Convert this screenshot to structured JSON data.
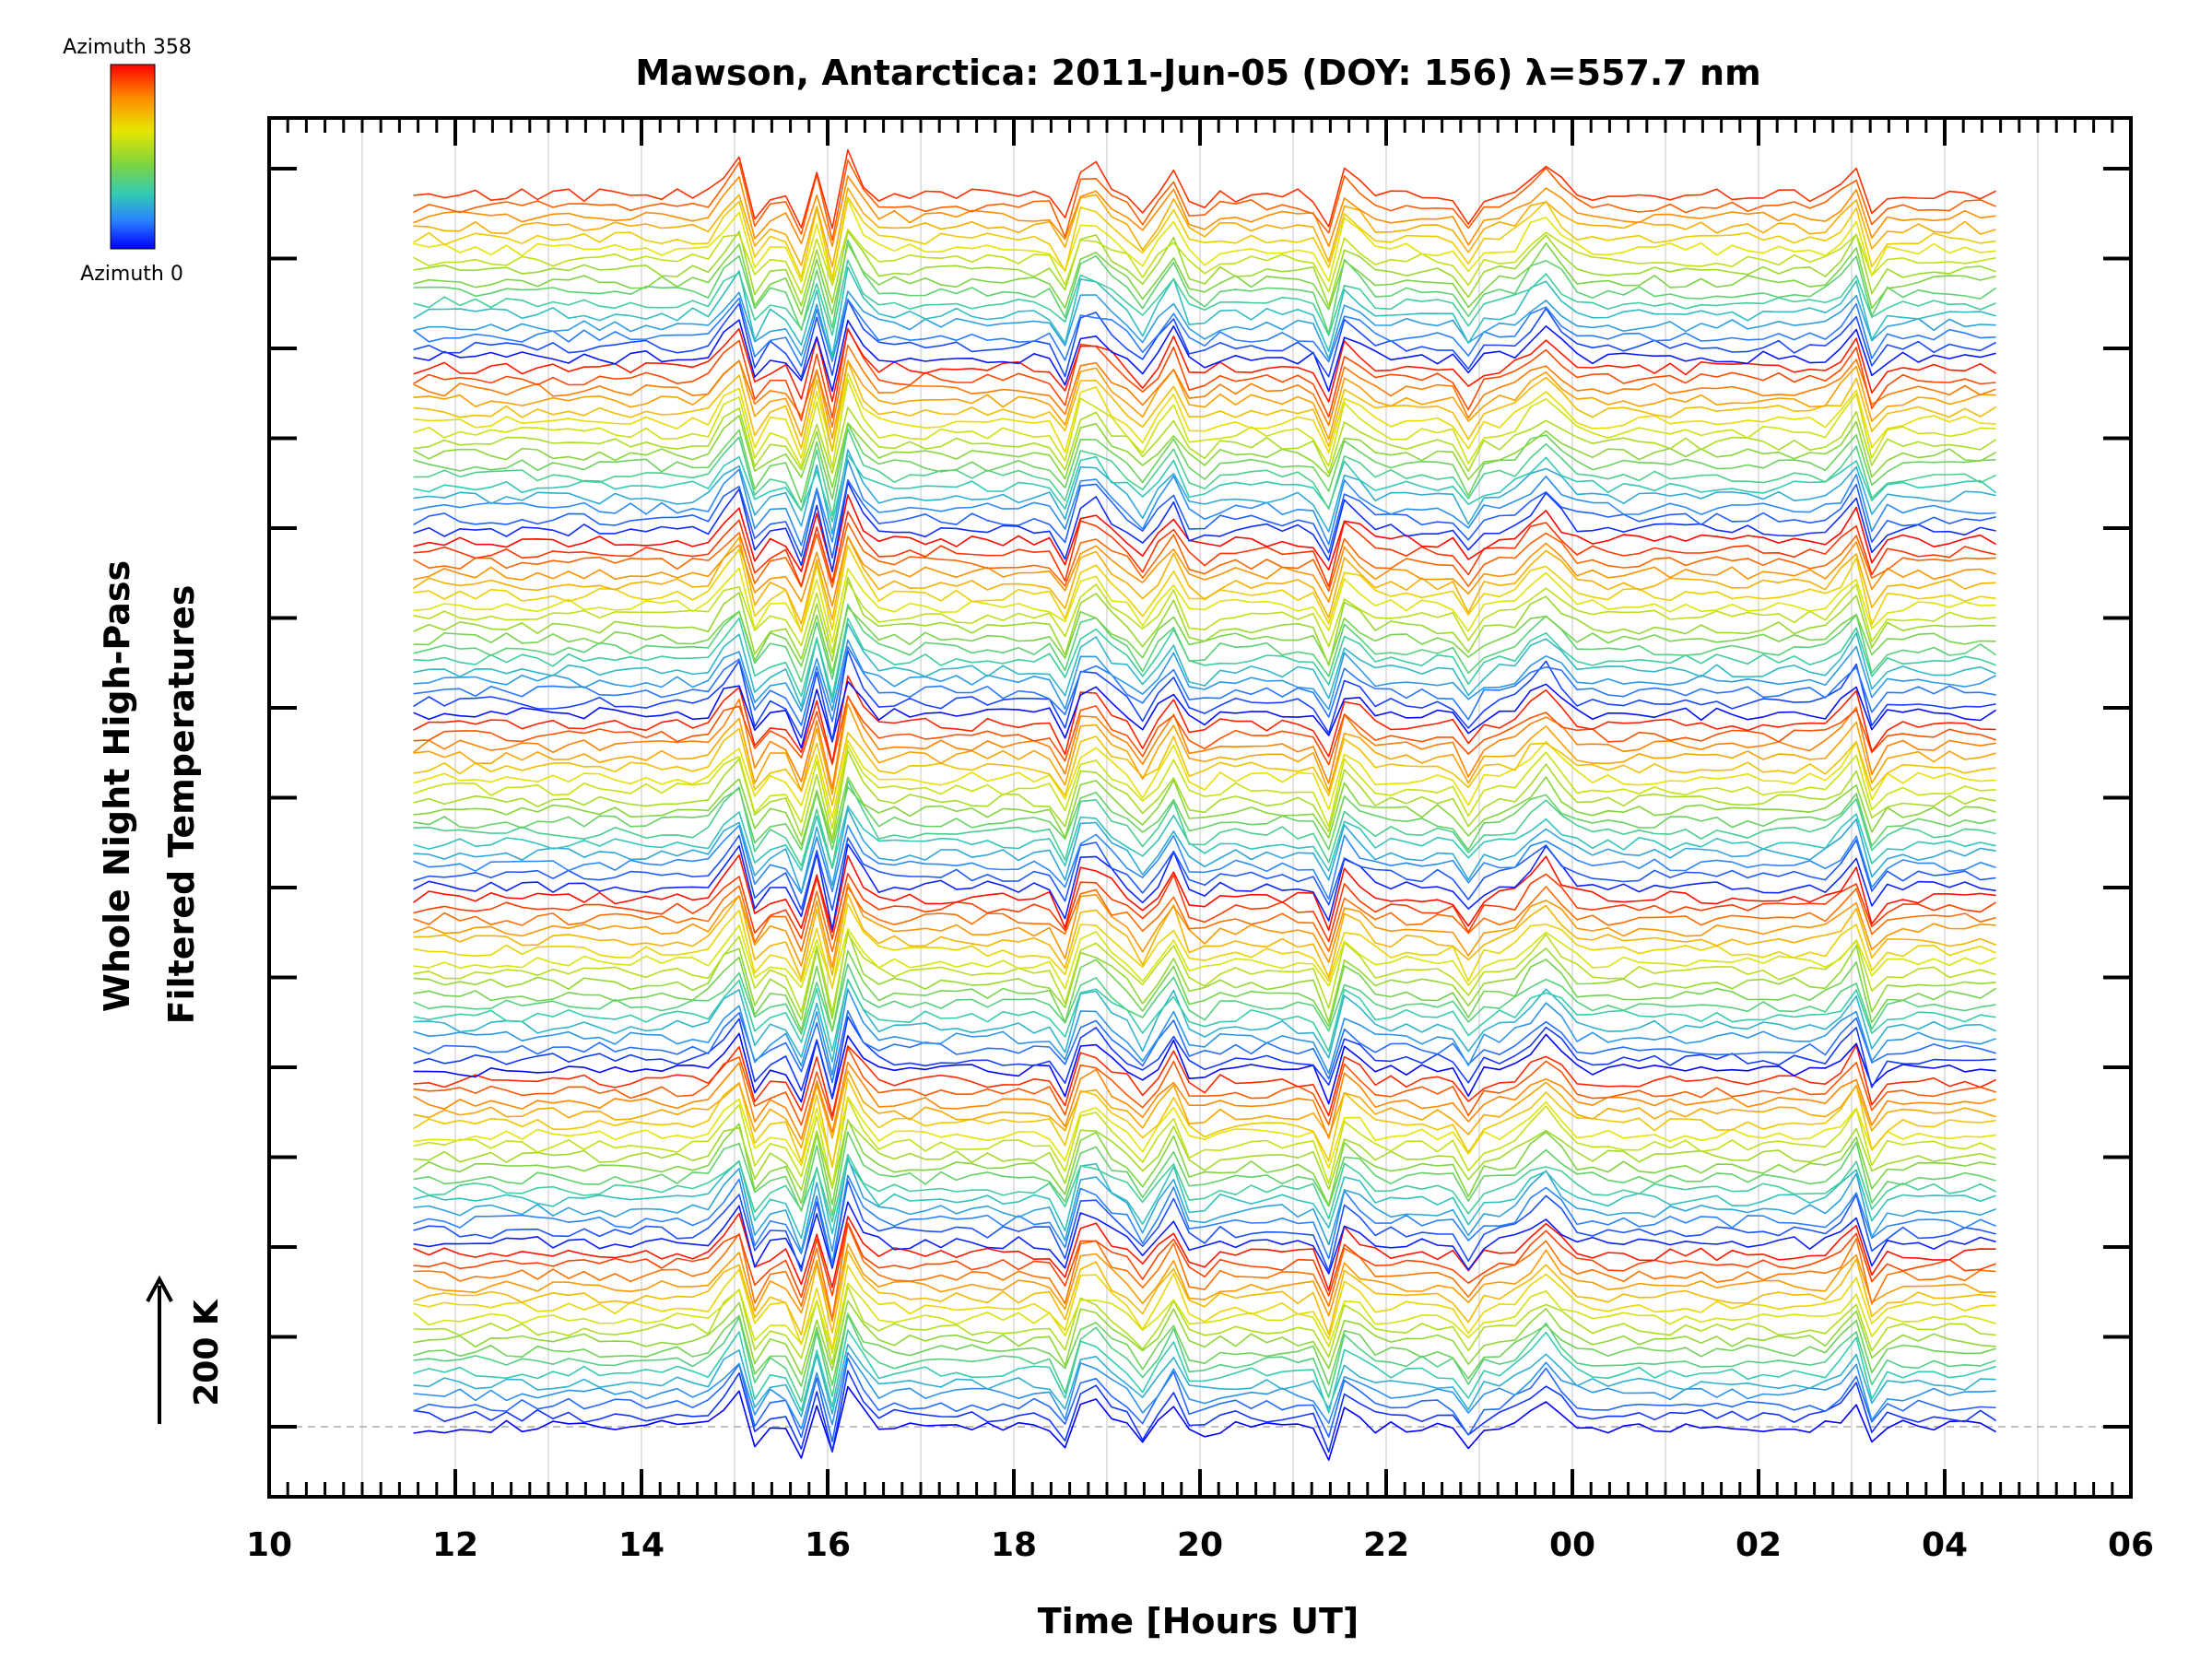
{
  "chart_data": {
    "type": "line",
    "title": "Mawson, Antarctica: 2011-Jun-05 (DOY: 156) λ=557.7 nm",
    "xlabel": "Time [Hours UT]",
    "ylabel": [
      "Whole Night High-Pass",
      "Filtered Temperatures"
    ],
    "x_range_hours": [
      10,
      30
    ],
    "x_tick_labels": [
      "10",
      "12",
      "14",
      "16",
      "18",
      "20",
      "22",
      "00",
      "02",
      "04",
      "06"
    ],
    "data_start_hour": 11.55,
    "data_end_hour": 28.6,
    "grid": "vertical",
    "scale_bar": "200 K",
    "colorbar": {
      "top_label": "Azimuth 358",
      "bottom_label": "Azimuth 0",
      "colors": [
        "#ff0000",
        "#ff8c00",
        "#e6e600",
        "#7fd43f",
        "#33ccb3",
        "#2a80ff",
        "#0000ff"
      ]
    },
    "series_count": 115,
    "azimuth_cycles": 7,
    "event_peaks_hours": [
      15.0,
      15.9,
      16.25,
      18.8,
      19.7,
      21.6,
      23.7,
      27.0
    ],
    "event_dips_hours": [
      15.2,
      15.75,
      16.05,
      18.55,
      19.45,
      19.95,
      21.4,
      22.9,
      27.2
    ]
  }
}
